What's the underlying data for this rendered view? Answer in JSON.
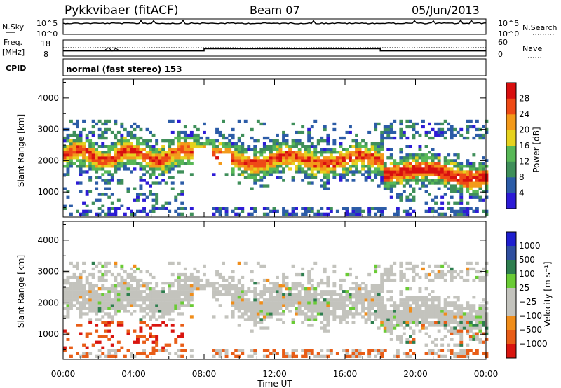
{
  "header": {
    "radar": "Pykkvibaer (fitACF)",
    "beam": "Beam 07",
    "date": "05/Jun/2013"
  },
  "nsky_panel": {
    "left_label": "N.Sky",
    "left_ticks": [
      "10^5",
      "10^0"
    ],
    "right_ticks": [
      "10^5",
      "10^0"
    ],
    "right_label": "N.Search"
  },
  "freq_panel": {
    "left_label_1": "Freq.",
    "left_label_2": "[MHz]",
    "left_ticks": [
      "18",
      "8"
    ],
    "right_ticks": [
      "60",
      "0"
    ],
    "right_label": "Nave",
    "cpid_label": "CPID",
    "cpid_text": "normal (fast stereo) 153",
    "freq_trace": [
      {
        "t": 0,
        "f": 11.2
      },
      {
        "t": 8,
        "f": 11.2
      },
      {
        "t": 8,
        "f": 12.6
      },
      {
        "t": 18,
        "f": 12.6
      },
      {
        "t": 18,
        "f": 11.2
      },
      {
        "t": 24,
        "f": 11.2
      }
    ]
  },
  "colors": {
    "power": [
      "#2d1bd6",
      "#2c5ca7",
      "#3f8f5a",
      "#58b857",
      "#e6d21e",
      "#f39a1a",
      "#ee4a16",
      "#d80f0f"
    ],
    "velocity": [
      "#1f1fcf",
      "#2f4f9f",
      "#2e7e4f",
      "#6acb35",
      "#c3c3bd",
      "#c3c3bd",
      "#f08d1a",
      "#e85d17",
      "#d9150f"
    ]
  },
  "chart_data": [
    {
      "type": "heatmap",
      "name": "power-panel",
      "x_range_hours": [
        0,
        24
      ],
      "ylim": [
        200,
        4600
      ],
      "ylabel": "Slant Range [km]",
      "yticks": [
        "1000",
        "2000",
        "3000",
        "4000"
      ],
      "colorbar": {
        "label": "Power [dB]",
        "ticks": [
          "4",
          "8",
          "12",
          "16",
          "20",
          "24",
          "28"
        ],
        "range": [
          0,
          32
        ]
      },
      "bands": [
        {
          "from": 0,
          "to": 7,
          "r0": 2050,
          "r1": 2250,
          "level": 20
        },
        {
          "from": 8.5,
          "to": 18,
          "r0": 1850,
          "r1": 2150,
          "level": 22
        },
        {
          "from": 18,
          "to": 24,
          "r0": 1450,
          "r1": 1900,
          "level": 26
        },
        {
          "from": 0,
          "to": 24,
          "r0": 300,
          "r1": 450,
          "level": 8
        }
      ]
    },
    {
      "type": "heatmap",
      "name": "velocity-panel",
      "x_range_hours": [
        0,
        24
      ],
      "ylim": [
        200,
        4600
      ],
      "ylabel": "Slant Range [km]",
      "yticks": [
        "1000",
        "2000",
        "3000",
        "4000"
      ],
      "xticks": [
        "00:00",
        "04:00",
        "08:00",
        "12:00",
        "16:00",
        "20:00",
        "00:00"
      ],
      "xlabel": "Time UT",
      "colorbar": {
        "label": "Velocity [m s⁻¹]",
        "ticks": [
          "1000",
          "500",
          "100",
          "25",
          "−25",
          "−100",
          "−500",
          "−1000"
        ]
      }
    }
  ]
}
